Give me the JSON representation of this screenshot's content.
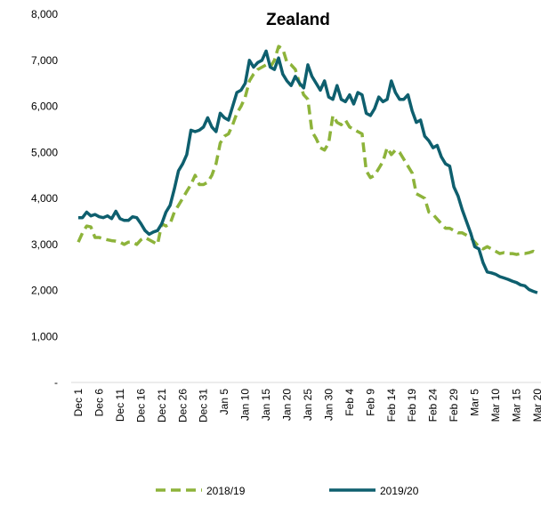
{
  "chart_data": {
    "type": "line",
    "title": "Zealand",
    "categories": [
      "Dec 1",
      null,
      null,
      null,
      null,
      "Dec 6",
      null,
      null,
      null,
      null,
      "Dec 11",
      null,
      null,
      null,
      null,
      "Dec 16",
      null,
      null,
      null,
      null,
      "Dec 21",
      null,
      null,
      null,
      null,
      "Dec 26",
      null,
      null,
      null,
      null,
      "Dec 31",
      null,
      null,
      null,
      null,
      "Jan 5",
      null,
      null,
      null,
      null,
      "Jan 10",
      null,
      null,
      null,
      null,
      "Jan 15",
      null,
      null,
      null,
      null,
      "Jan 20",
      null,
      null,
      null,
      null,
      "Jan 25",
      null,
      null,
      null,
      null,
      "Jan 30",
      null,
      null,
      null,
      null,
      "Feb 4",
      null,
      null,
      null,
      null,
      "Feb 9",
      null,
      null,
      null,
      null,
      "Feb 14",
      null,
      null,
      null,
      null,
      "Feb 19",
      null,
      null,
      null,
      null,
      "Feb 24",
      null,
      null,
      null,
      null,
      "Feb 29",
      null,
      null,
      null,
      null,
      "Mar 5",
      null,
      null,
      null,
      null,
      "Mar 10",
      null,
      null,
      null,
      null,
      "Mar 15",
      null,
      null,
      null,
      null,
      "Mar 20"
    ],
    "series": [
      {
        "name": "2018/19",
        "color": "#8db33a",
        "dashed": true,
        "values": [
          3050,
          3250,
          3400,
          3380,
          3150,
          3150,
          3120,
          3100,
          3080,
          3070,
          3050,
          3000,
          3050,
          3050,
          3000,
          3100,
          3150,
          3100,
          3050,
          3000,
          3450,
          3400,
          3450,
          3700,
          3850,
          4000,
          4150,
          4300,
          4500,
          4300,
          4300,
          4350,
          4500,
          4750,
          5200,
          5350,
          5400,
          5600,
          5850,
          6000,
          6200,
          6550,
          6700,
          6800,
          6850,
          6900,
          6850,
          7000,
          7300,
          7250,
          6950,
          6900,
          6800,
          6500,
          6250,
          6150,
          5450,
          5300,
          5100,
          5050,
          5200,
          5800,
          5650,
          5600,
          5700,
          5550,
          5500,
          5450,
          5400,
          4600,
          4450,
          4500,
          4650,
          4800,
          5100,
          4950,
          5050,
          5000,
          4850,
          4700,
          4550,
          4100,
          4050,
          4000,
          3700,
          3650,
          3550,
          3450,
          3350,
          3350,
          3300,
          3250,
          3250,
          3200,
          3150,
          3050,
          2950,
          2900,
          2950,
          2900,
          2850,
          2800,
          2820,
          2800,
          2800,
          2780,
          2800,
          2800,
          2820,
          2850,
          2800
        ]
      },
      {
        "name": "2019/20",
        "color": "#0e5f6e",
        "dashed": false,
        "values": [
          3580,
          3580,
          3700,
          3620,
          3650,
          3600,
          3580,
          3620,
          3560,
          3720,
          3560,
          3520,
          3520,
          3600,
          3580,
          3450,
          3300,
          3220,
          3270,
          3300,
          3450,
          3700,
          3850,
          4200,
          4600,
          4750,
          4950,
          5480,
          5450,
          5480,
          5550,
          5750,
          5550,
          5450,
          5850,
          5750,
          5700,
          6000,
          6300,
          6350,
          6500,
          7000,
          6850,
          6950,
          7000,
          7200,
          6850,
          6800,
          7050,
          6700,
          6550,
          6450,
          6650,
          6500,
          6400,
          6900,
          6650,
          6500,
          6350,
          6550,
          6200,
          6150,
          6450,
          6150,
          6100,
          6250,
          6050,
          6300,
          6250,
          5850,
          5800,
          5950,
          6200,
          6100,
          6150,
          6550,
          6300,
          6150,
          6150,
          6250,
          5900,
          5650,
          5700,
          5350,
          5250,
          5100,
          5150,
          4900,
          4750,
          4700,
          4250,
          4050,
          3750,
          3500,
          3250,
          2950,
          2900,
          2600,
          2400,
          2380,
          2350,
          2300,
          2270,
          2240,
          2200,
          2170,
          2120,
          2100,
          2020,
          1980,
          1950
        ]
      }
    ],
    "ylim": [
      0,
      8000
    ],
    "yticks": [
      {
        "value": 0,
        "label": "-"
      },
      {
        "value": 1000,
        "label": "1,000"
      },
      {
        "value": 2000,
        "label": "2,000"
      },
      {
        "value": 3000,
        "label": "3,000"
      },
      {
        "value": 4000,
        "label": "4,000"
      },
      {
        "value": 5000,
        "label": "5,000"
      },
      {
        "value": 6000,
        "label": "6,000"
      },
      {
        "value": 7000,
        "label": "7,000"
      },
      {
        "value": 8000,
        "label": "8,000"
      }
    ],
    "grid": false,
    "legend": "bottom"
  }
}
